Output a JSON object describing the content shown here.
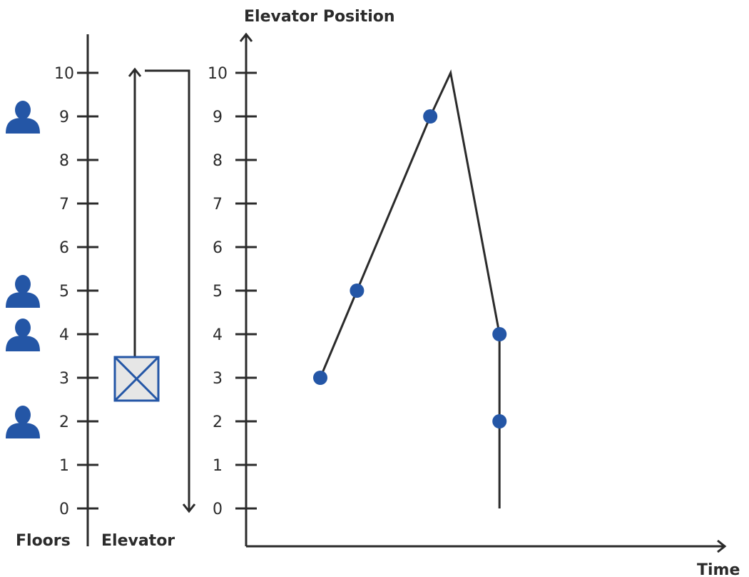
{
  "labels": {
    "floors": "Floors",
    "elevator": "Elevator",
    "chart_title": "Elevator Position",
    "time": "Time"
  },
  "floor_ticks": [
    "0",
    "1",
    "2",
    "3",
    "4",
    "5",
    "6",
    "7",
    "8",
    "9",
    "10"
  ],
  "people_floors": [
    9,
    5,
    4,
    2
  ],
  "elevator_car": {
    "current_floor": 3,
    "shaft_top_floor": 10,
    "shaft_bottom_floor": 0
  },
  "colors": {
    "accent": "#2456a6",
    "car_fill": "#e6e6e6",
    "line": "#2b2b2b"
  },
  "icons": {
    "person": "person-icon",
    "elevator": "elevator-car-icon"
  },
  "chart_data": {
    "type": "line",
    "title": "Elevator Position",
    "xlabel": "Time",
    "ylabel": "",
    "ylim": [
      0,
      10
    ],
    "yticks": [
      0,
      1,
      2,
      3,
      4,
      5,
      6,
      7,
      8,
      9,
      10
    ],
    "path": [
      {
        "t": 0.0,
        "floor": 3
      },
      {
        "t": 0.09,
        "floor": 5
      },
      {
        "t": 0.27,
        "floor": 9
      },
      {
        "t": 0.32,
        "floor": 10
      },
      {
        "t": 0.44,
        "floor": 4
      },
      {
        "t": 0.44,
        "floor": 2
      },
      {
        "t": 0.44,
        "floor": 0
      }
    ],
    "stops": [
      {
        "t": 0.0,
        "floor": 3
      },
      {
        "t": 0.09,
        "floor": 5
      },
      {
        "t": 0.27,
        "floor": 9
      },
      {
        "t": 0.44,
        "floor": 4
      },
      {
        "t": 0.44,
        "floor": 2
      }
    ],
    "grid": false,
    "legend": "none"
  }
}
